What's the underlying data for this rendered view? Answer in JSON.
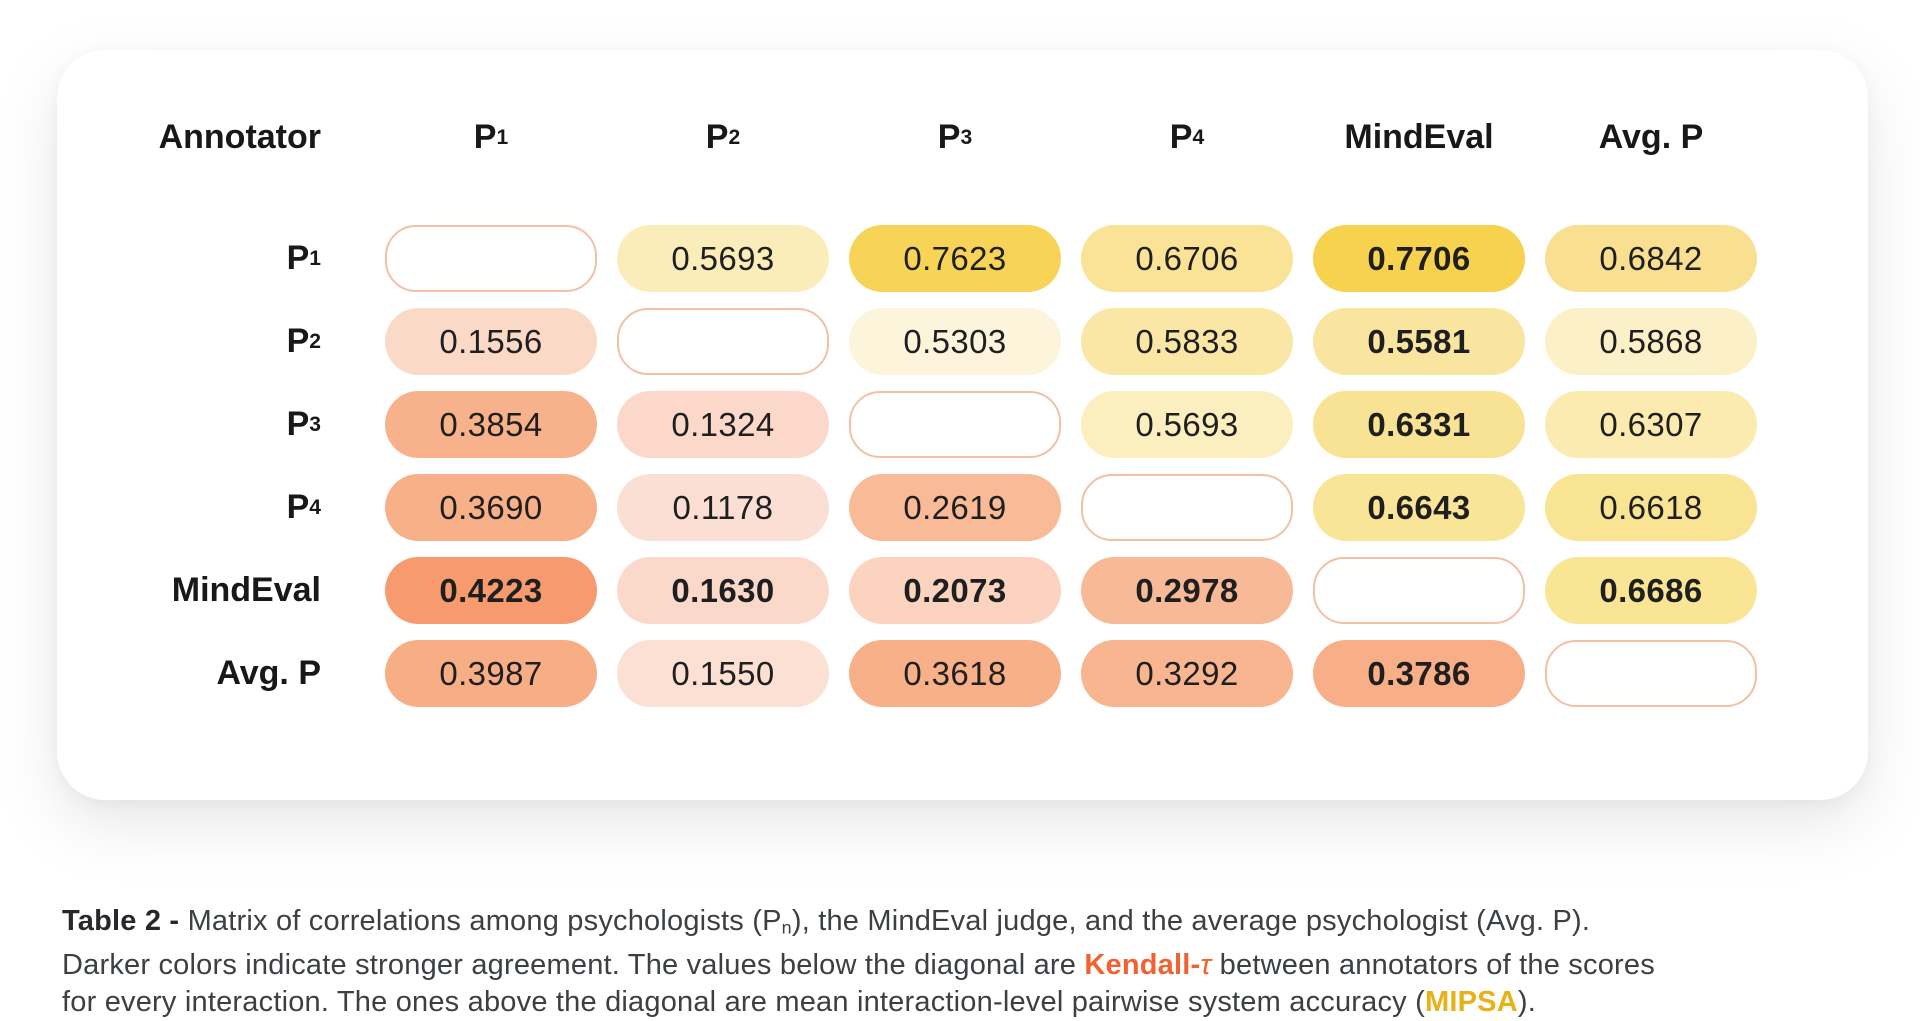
{
  "colors": {
    "diagonal_border": "#F3C0A7",
    "kendall_orange": "#F2612F",
    "mipsa_gold": "#E8B117",
    "caption_text": "#3C4043",
    "value_text": "#1F1F1F",
    "header_text": "#17181A",
    "strong_yellow": "#F7D24F",
    "strong_orange": "#F79B6F"
  },
  "table": {
    "header": [
      {
        "key": "annotator",
        "base": "Annotator"
      },
      {
        "key": "p1",
        "base": "P",
        "sub": "1"
      },
      {
        "key": "p2",
        "base": "P",
        "sub": "2"
      },
      {
        "key": "p3",
        "base": "P",
        "sub": "3"
      },
      {
        "key": "p4",
        "base": "P",
        "sub": "4"
      },
      {
        "key": "mindeval",
        "base": "MindEval"
      },
      {
        "key": "avg-p",
        "base": "Avg. P"
      }
    ],
    "rows": [
      {
        "key": "p1",
        "label": {
          "base": "P",
          "sub": "1"
        },
        "cells": [
          {
            "diagonal": true
          },
          {
            "value": "0.5693",
            "bg": "#FBEDBA",
            "bold": false
          },
          {
            "value": "0.7623",
            "bg": "#F7D458",
            "bold": false
          },
          {
            "value": "0.6706",
            "bg": "#FAE396",
            "bold": false
          },
          {
            "value": "0.7706",
            "bg": "#F7D24F",
            "bold": true
          },
          {
            "value": "0.6842",
            "bg": "#F9E091",
            "bold": false
          }
        ]
      },
      {
        "key": "p2",
        "label": {
          "base": "P",
          "sub": "2"
        },
        "cells": [
          {
            "value": "0.1556",
            "bg": "#FBD9C7",
            "bold": false
          },
          {
            "diagonal": true
          },
          {
            "value": "0.5303",
            "bg": "#FDF4DC",
            "bold": false
          },
          {
            "value": "0.5833",
            "bg": "#FAE7A6",
            "bold": false
          },
          {
            "value": "0.5581",
            "bg": "#F9E5A0",
            "bold": true
          },
          {
            "value": "0.5868",
            "bg": "#FCF0C8",
            "bold": false
          }
        ]
      },
      {
        "key": "p3",
        "label": {
          "base": "P",
          "sub": "3"
        },
        "cells": [
          {
            "value": "0.3854",
            "bg": "#F8B28B",
            "bold": false
          },
          {
            "value": "0.1324",
            "bg": "#FBD8CA",
            "bold": false
          },
          {
            "diagonal": true
          },
          {
            "value": "0.5693",
            "bg": "#FBEFC0",
            "bold": false
          },
          {
            "value": "0.6331",
            "bg": "#F8E294",
            "bold": true
          },
          {
            "value": "0.6307",
            "bg": "#FBEBB0",
            "bold": false
          }
        ]
      },
      {
        "key": "p4",
        "label": {
          "base": "P",
          "sub": "4"
        },
        "cells": [
          {
            "value": "0.3690",
            "bg": "#F8B088",
            "bold": false
          },
          {
            "value": "0.1178",
            "bg": "#FCDFD4",
            "bold": false
          },
          {
            "value": "0.2619",
            "bg": "#F9BA97",
            "bold": false
          },
          {
            "diagonal": true
          },
          {
            "value": "0.6643",
            "bg": "#F9E598",
            "bold": true
          },
          {
            "value": "0.6618",
            "bg": "#F9E494",
            "bold": false
          }
        ]
      },
      {
        "key": "mindeval",
        "label": {
          "base": "MindEval"
        },
        "cells": [
          {
            "value": "0.4223",
            "bg": "#F79B6F",
            "bold": true
          },
          {
            "value": "0.1630",
            "bg": "#FBD9CA",
            "bold": true
          },
          {
            "value": "0.2073",
            "bg": "#FBD3BF",
            "bold": true
          },
          {
            "value": "0.2978",
            "bg": "#F8B997",
            "bold": true
          },
          {
            "diagonal": true
          },
          {
            "value": "0.6686",
            "bg": "#F9E594",
            "bold": true
          }
        ]
      },
      {
        "key": "avg-p",
        "label": {
          "base": "Avg. P"
        },
        "cells": [
          {
            "value": "0.3987",
            "bg": "#F8AE85",
            "bold": false
          },
          {
            "value": "0.1550",
            "bg": "#FCE0D3",
            "bold": false
          },
          {
            "value": "0.3618",
            "bg": "#F8B089",
            "bold": false
          },
          {
            "value": "0.3292",
            "bg": "#F8B590",
            "bold": false
          },
          {
            "value": "0.3786",
            "bg": "#F8AF88",
            "bold": true
          },
          {
            "diagonal": true
          }
        ]
      }
    ]
  },
  "caption": {
    "lines": [
      [
        {
          "t": "Table 2 - ",
          "s": "bold"
        },
        {
          "t": "Matrix of correlations among psychologists (P"
        },
        {
          "t": "n",
          "s": "sub"
        },
        {
          "t": "), the MindEval judge, and the average psychologist (Avg. P)."
        }
      ],
      [
        {
          "t": "Darker colors indicate stronger agreement. The values below the diagonal are "
        },
        {
          "t": "Kendall-",
          "s": "kendall"
        },
        {
          "t": "τ",
          "s": "tau"
        },
        {
          "t": " between annotators of the scores"
        }
      ],
      [
        {
          "t": "for every interaction. The ones above the diagonal are mean interaction-level pairwise system accuracy ("
        },
        {
          "t": "MIPSA",
          "s": "mipsa"
        },
        {
          "t": ")."
        }
      ]
    ]
  },
  "chart_data": {
    "type": "heatmap",
    "title": "Matrix of correlations among psychologists, the MindEval judge, and the average psychologist",
    "row_labels": [
      "P1",
      "P2",
      "P3",
      "P4",
      "MindEval",
      "Avg. P"
    ],
    "col_labels": [
      "P1",
      "P2",
      "P3",
      "P4",
      "MindEval",
      "Avg. P"
    ],
    "matrix": [
      [
        null,
        0.5693,
        0.7623,
        0.6706,
        0.7706,
        0.6842
      ],
      [
        0.1556,
        null,
        0.5303,
        0.5833,
        0.5581,
        0.5868
      ],
      [
        0.3854,
        0.1324,
        null,
        0.5693,
        0.6331,
        0.6307
      ],
      [
        0.369,
        0.1178,
        0.2619,
        null,
        0.6643,
        0.6618
      ],
      [
        0.4223,
        0.163,
        0.2073,
        0.2978,
        null,
        0.6686
      ],
      [
        0.3987,
        0.155,
        0.3618,
        0.3292,
        0.3786,
        null
      ]
    ],
    "below_diagonal_metric": "Kendall-τ between annotators of the scores for every interaction",
    "above_diagonal_metric": "mean interaction-level pairwise system accuracy (MIPSA)",
    "legend_position": "none",
    "grid": false
  }
}
